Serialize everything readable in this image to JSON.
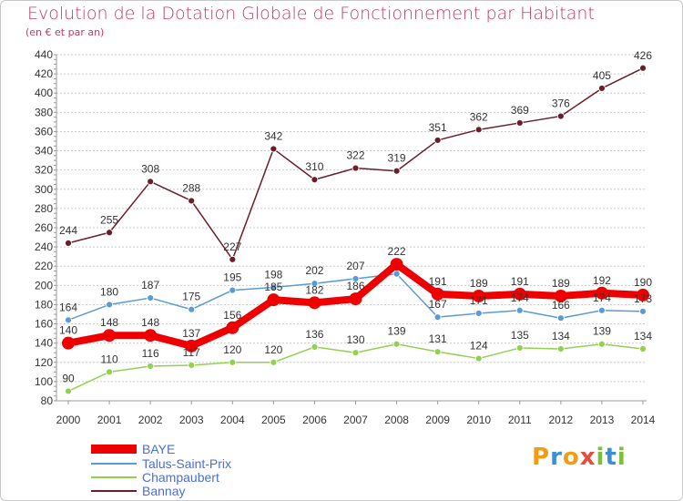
{
  "title": "Evolution de la Dotation Globale de Fonctionnement par Habitant",
  "subtitle": "(en € et par an)",
  "logo": "Proxiti",
  "chart_data": {
    "type": "line",
    "title": "Evolution de la Dotation Globale de Fonctionnement par Habitant",
    "subtitle": "(en € et par an)",
    "xlabel": "",
    "ylabel": "",
    "x": [
      "2000",
      "2001",
      "2002",
      "2003",
      "2004",
      "2005",
      "2006",
      "2007",
      "2008",
      "2009",
      "2010",
      "2011",
      "2012",
      "2013",
      "2014"
    ],
    "ylim": [
      80,
      440
    ],
    "yticks": [
      80,
      100,
      120,
      140,
      160,
      180,
      200,
      220,
      240,
      260,
      280,
      300,
      320,
      340,
      360,
      380,
      400,
      420,
      440
    ],
    "grid": "horizontal dashed",
    "legend_position": "bottom-left",
    "series": [
      {
        "name": "BAYE",
        "color": "#ee0000",
        "emphasis": true,
        "values": [
          140,
          148,
          148,
          137,
          156,
          185,
          182,
          186,
          222,
          191,
          189,
          191,
          189,
          192,
          190
        ],
        "labels": [
          "140",
          "148",
          "148",
          "137",
          "156",
          "185",
          "182",
          "186",
          "222",
          "191",
          "189",
          "191",
          "189",
          "192",
          "190"
        ]
      },
      {
        "name": "Talus-Saint-Prix",
        "color": "#5b9bd5",
        "values": [
          164,
          180,
          187,
          175,
          195,
          198,
          202,
          207,
          212,
          167,
          171,
          174,
          166,
          174,
          173
        ],
        "labels": [
          "164",
          "180",
          "187",
          "175",
          "195",
          "198",
          "202",
          "207",
          "",
          "167",
          "171",
          "174",
          "166",
          "174",
          "173"
        ]
      },
      {
        "name": "Champaubert",
        "color": "#92d050",
        "values": [
          90,
          110,
          116,
          117,
          120,
          120,
          136,
          130,
          139,
          131,
          124,
          135,
          134,
          139,
          134
        ],
        "labels": [
          "90",
          "110",
          "116",
          "117",
          "120",
          "120",
          "136",
          "130",
          "139",
          "131",
          "124",
          "135",
          "134",
          "139",
          "134"
        ]
      },
      {
        "name": "Bannay",
        "color": "#6b1e2a",
        "values": [
          244,
          255,
          308,
          288,
          227,
          342,
          310,
          322,
          319,
          351,
          362,
          369,
          376,
          405,
          426
        ],
        "labels": [
          "244",
          "255",
          "308",
          "288",
          "227",
          "342",
          "310",
          "322",
          "319",
          "351",
          "362",
          "369",
          "376",
          "405",
          "426"
        ]
      }
    ]
  }
}
